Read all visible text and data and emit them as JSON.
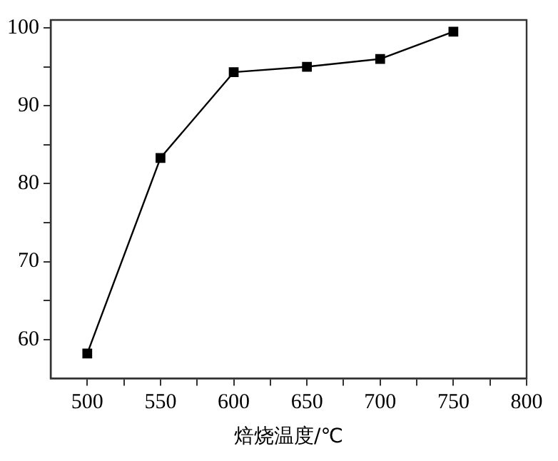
{
  "chart_data": {
    "type": "line",
    "xlabel": "焙烧温度/℃",
    "x": [
      500,
      550,
      600,
      650,
      700,
      750
    ],
    "series": [
      {
        "color": "#000000",
        "values": [
          58.2,
          83.3,
          94.3,
          95.0,
          96.0,
          99.5
        ]
      }
    ],
    "xlim": [
      475,
      800
    ],
    "xticks": [
      500,
      {
        "value": 525,
        "label": null
      },
      550,
      {
        "value": 575,
        "label": null
      },
      600,
      {
        "value": 625,
        "label": null
      },
      650,
      {
        "value": 675,
        "label": null
      },
      700,
      {
        "value": 725,
        "label": null
      },
      750,
      {
        "value": 775,
        "label": null
      },
      800
    ],
    "ylim": [
      55,
      101
    ],
    "yticks": [
      60,
      {
        "value": 65,
        "label": null
      },
      70,
      {
        "value": 75,
        "label": null
      },
      80,
      {
        "value": 85,
        "label": null
      },
      90,
      {
        "value": 95,
        "label": null
      },
      100
    ],
    "grid": false,
    "legend": false,
    "marker": "square",
    "line_style": "solid"
  }
}
